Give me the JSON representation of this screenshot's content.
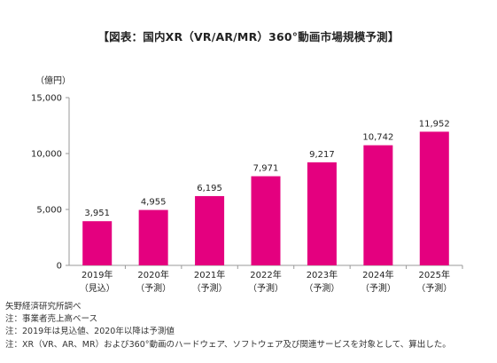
{
  "chart_data": {
    "type": "bar",
    "title": "【図表：国内XR（VR/AR/MR）360°動画市場規模予測】",
    "ylabel": "（億円）",
    "categories": [
      [
        "2019年",
        "（見込）"
      ],
      [
        "2020年",
        "（予測）"
      ],
      [
        "2021年",
        "（予測）"
      ],
      [
        "2022年",
        "（予測）"
      ],
      [
        "2023年",
        "（予測）"
      ],
      [
        "2024年",
        "（予測）"
      ],
      [
        "2025年",
        "（予測）"
      ]
    ],
    "values": [
      3951,
      4955,
      6195,
      7971,
      9217,
      10742,
      11952
    ],
    "value_labels": [
      "3,951",
      "4,955",
      "6,195",
      "7,971",
      "9,217",
      "10,742",
      "11,952"
    ],
    "ylim": [
      0,
      15000
    ],
    "yticks": [
      0,
      5000,
      10000,
      15000
    ],
    "ytick_labels": [
      "0",
      "5,000",
      "10,000",
      "15,000"
    ],
    "grid": false,
    "bar_color": "#e4007f"
  },
  "footnotes": [
    "矢野経済研究所調べ",
    "注：事業者売上高ベース",
    "注：2019年は見込値、2020年以降は予測値",
    "注：XR（VR、AR、MR）および360°動画のハードウェア、ソフトウェア及び関連サービスを対象として、算出した。"
  ]
}
